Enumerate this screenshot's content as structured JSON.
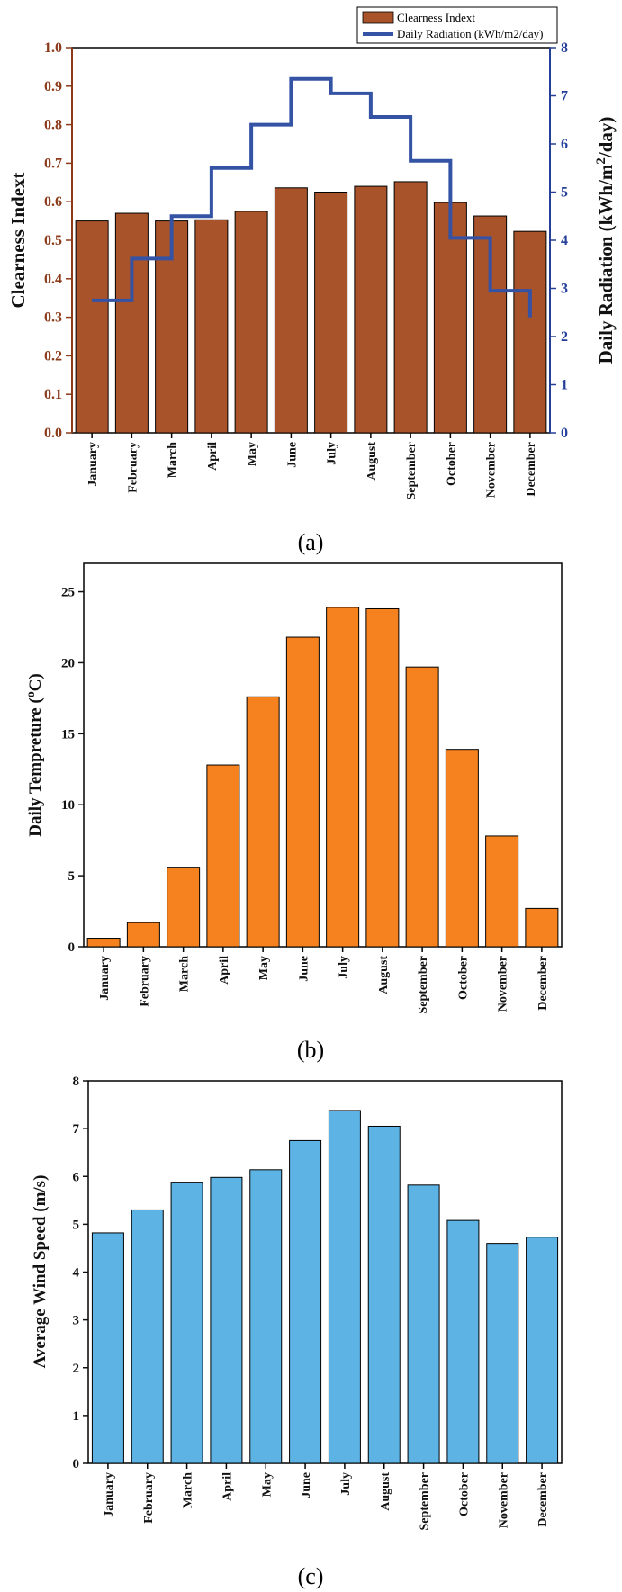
{
  "chart_data": [
    {
      "panel": "(a)",
      "type": "bar",
      "categories": [
        "January",
        "February",
        "March",
        "April",
        "May",
        "June",
        "July",
        "August",
        "September",
        "October",
        "November",
        "December"
      ],
      "series": [
        {
          "name": "Clearness Indext",
          "type": "bar",
          "axis": "left",
          "values": [
            0.55,
            0.57,
            0.55,
            0.553,
            0.575,
            0.636,
            0.625,
            0.64,
            0.652,
            0.598,
            0.563,
            0.523
          ]
        },
        {
          "name": "Daily Radiation (kWh/m2/day)",
          "type": "step",
          "axis": "right",
          "values": [
            2.75,
            3.62,
            4.5,
            5.5,
            6.4,
            7.35,
            7.05,
            6.56,
            5.65,
            4.05,
            2.95,
            2.4
          ]
        }
      ],
      "ylabel": "Clearness Indext",
      "ylabel_right": "Daily Radiation (kWh/m2/day)",
      "ylim": [
        0,
        1.0
      ],
      "ylim_right": [
        0,
        8
      ],
      "yticks": [
        "0.0",
        "0.1",
        "0.2",
        "0.3",
        "0.4",
        "0.5",
        "0.6",
        "0.7",
        "0.8",
        "0.9",
        "1.0"
      ],
      "yticks_right": [
        "0",
        "1",
        "2",
        "3",
        "4",
        "5",
        "6",
        "7",
        "8"
      ],
      "legend_position": "top-right",
      "colors": {
        "bar": "#a9532a",
        "line": "#3453a4",
        "left_axis": "#8b3a1a",
        "right_axis": "#26409a"
      }
    },
    {
      "panel": "(b)",
      "type": "bar",
      "categories": [
        "January",
        "February",
        "March",
        "April",
        "May",
        "June",
        "July",
        "August",
        "September",
        "October",
        "November",
        "December"
      ],
      "values": [
        0.6,
        1.7,
        5.6,
        12.8,
        17.6,
        21.8,
        23.9,
        23.8,
        19.7,
        13.9,
        7.8,
        2.7
      ],
      "ylabel": "Daily Tempreture (oC)",
      "ylim": [
        0,
        27
      ],
      "yticks": [
        "0",
        "5",
        "10",
        "15",
        "20",
        "25"
      ],
      "colors": {
        "bar": "#f5821f"
      }
    },
    {
      "panel": "(c)",
      "type": "bar",
      "categories": [
        "January",
        "February",
        "March",
        "April",
        "May",
        "June",
        "July",
        "August",
        "September",
        "October",
        "November",
        "December"
      ],
      "values": [
        4.82,
        5.3,
        5.88,
        5.98,
        6.14,
        6.75,
        7.38,
        7.05,
        5.82,
        5.08,
        4.6,
        4.73
      ],
      "ylabel": "Average Wind Speed (m/s)",
      "ylim": [
        0,
        8
      ],
      "yticks": [
        "0",
        "1",
        "2",
        "3",
        "4",
        "5",
        "6",
        "7",
        "8"
      ],
      "colors": {
        "bar": "#5db3e4"
      }
    }
  ],
  "labels": {
    "panel_a": "(a)",
    "panel_b": "(b)",
    "panel_c": "(c)",
    "legend_bar": "Clearness Indext",
    "legend_line": "Daily Radiation (kWh/m2/day)",
    "a_ylabel_main": "Daily Radiation (kWh/m",
    "a_ylabel_sup": "2",
    "a_ylabel_end": "/day)",
    "b_ylabel_main": "Daily Tempreture (",
    "b_ylabel_sup": "o",
    "b_ylabel_end": "C)"
  }
}
